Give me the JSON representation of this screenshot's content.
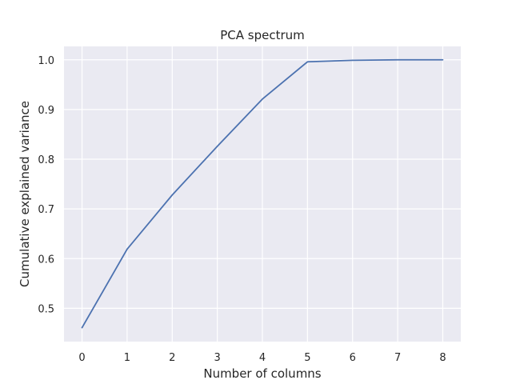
{
  "chart_data": {
    "type": "line",
    "title": "PCA spectrum",
    "xlabel": "Number of columns",
    "ylabel": "Cumulative explained variance",
    "x": [
      0,
      1,
      2,
      3,
      4,
      5,
      6,
      7,
      8
    ],
    "series": [
      {
        "values": [
          0.461,
          0.619,
          0.728,
          0.826,
          0.921,
          0.996,
          0.999,
          1.0,
          1.0
        ]
      }
    ],
    "xlim": [
      -0.4,
      8.4
    ],
    "ylim": [
      0.433,
      1.027
    ],
    "xticks": [
      0,
      1,
      2,
      3,
      4,
      5,
      6,
      7,
      8
    ],
    "xtick_labels": [
      "0",
      "1",
      "2",
      "3",
      "4",
      "5",
      "6",
      "7",
      "8"
    ],
    "yticks": [
      0.5,
      0.6,
      0.7,
      0.8,
      0.9,
      1.0
    ],
    "ytick_labels": [
      "0.5",
      "0.6",
      "0.7",
      "0.8",
      "0.9",
      "1.0"
    ],
    "grid": true,
    "background_color": "#eaeaf2",
    "grid_color": "#ffffff",
    "line_color": "#4c72b0"
  }
}
